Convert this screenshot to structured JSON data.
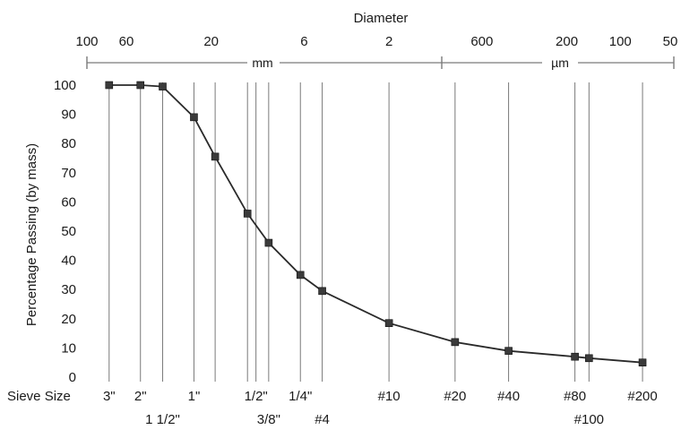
{
  "chart_data": {
    "type": "line",
    "top_axis_title": "Diameter",
    "top_ticks": [
      {
        "label": "100",
        "d": 100
      },
      {
        "label": "60",
        "d": 60
      },
      {
        "label": "20",
        "d": 20
      },
      {
        "label": "6",
        "d": 6
      },
      {
        "label": "2",
        "d": 2
      },
      {
        "label": "600",
        "d": 0.6
      },
      {
        "label": "200",
        "d": 0.2
      },
      {
        "label": "100",
        "d": 0.1
      },
      {
        "label": "50",
        "d": 0.05
      }
    ],
    "unit_mm": "mm",
    "unit_um": "µm",
    "ylabel": "Percentage Passing (by mass)",
    "ylim": [
      0,
      100
    ],
    "yticks": [
      "100",
      "90",
      "80",
      "70",
      "60",
      "50",
      "40",
      "30",
      "20",
      "10",
      "0"
    ],
    "x_scale": "log-reversed",
    "sieve_size_label": "Sieve Size",
    "sieves": [
      {
        "label": "3\"",
        "d": 75,
        "row": 1
      },
      {
        "label": "2\"",
        "d": 50,
        "row": 1
      },
      {
        "label": "1 1/2\"",
        "d": 37.5,
        "row": 2
      },
      {
        "label": "1\"",
        "d": 25,
        "row": 1
      },
      {
        "label": "",
        "d": 19,
        "row": 0
      },
      {
        "label": "",
        "d": 12.5,
        "row": 0
      },
      {
        "label": "1/2\"",
        "d": 11.2,
        "row": 1
      },
      {
        "label": "3/8\"",
        "d": 9.5,
        "row": 2
      },
      {
        "label": "1/4\"",
        "d": 6.3,
        "row": 1
      },
      {
        "label": "#4",
        "d": 4.75,
        "row": 2
      },
      {
        "label": "#10",
        "d": 2.0,
        "row": 1
      },
      {
        "label": "#20",
        "d": 0.85,
        "row": 1
      },
      {
        "label": "#40",
        "d": 0.425,
        "row": 1
      },
      {
        "label": "#80",
        "d": 0.18,
        "row": 1
      },
      {
        "label": "#100",
        "d": 0.15,
        "row": 2
      },
      {
        "label": "#200",
        "d": 0.075,
        "row": 1
      }
    ],
    "series": [
      {
        "points": [
          {
            "d": 75,
            "y": 100
          },
          {
            "d": 50,
            "y": 100
          },
          {
            "d": 37.5,
            "y": 99.5
          },
          {
            "d": 25,
            "y": 89
          },
          {
            "d": 19,
            "y": 75.5
          },
          {
            "d": 12.5,
            "y": 56
          },
          {
            "d": 9.5,
            "y": 46
          },
          {
            "d": 6.3,
            "y": 35
          },
          {
            "d": 4.75,
            "y": 29.5
          },
          {
            "d": 2.0,
            "y": 18.5
          },
          {
            "d": 0.85,
            "y": 12
          },
          {
            "d": 0.425,
            "y": 9
          },
          {
            "d": 0.18,
            "y": 7
          },
          {
            "d": 0.15,
            "y": 6.5
          },
          {
            "d": 0.075,
            "y": 5
          }
        ]
      }
    ],
    "colors": {
      "line": "#2a2a2a",
      "marker": "#3a3a3a",
      "grid": "#7a7a7a",
      "text": "#1a1a1a"
    }
  }
}
